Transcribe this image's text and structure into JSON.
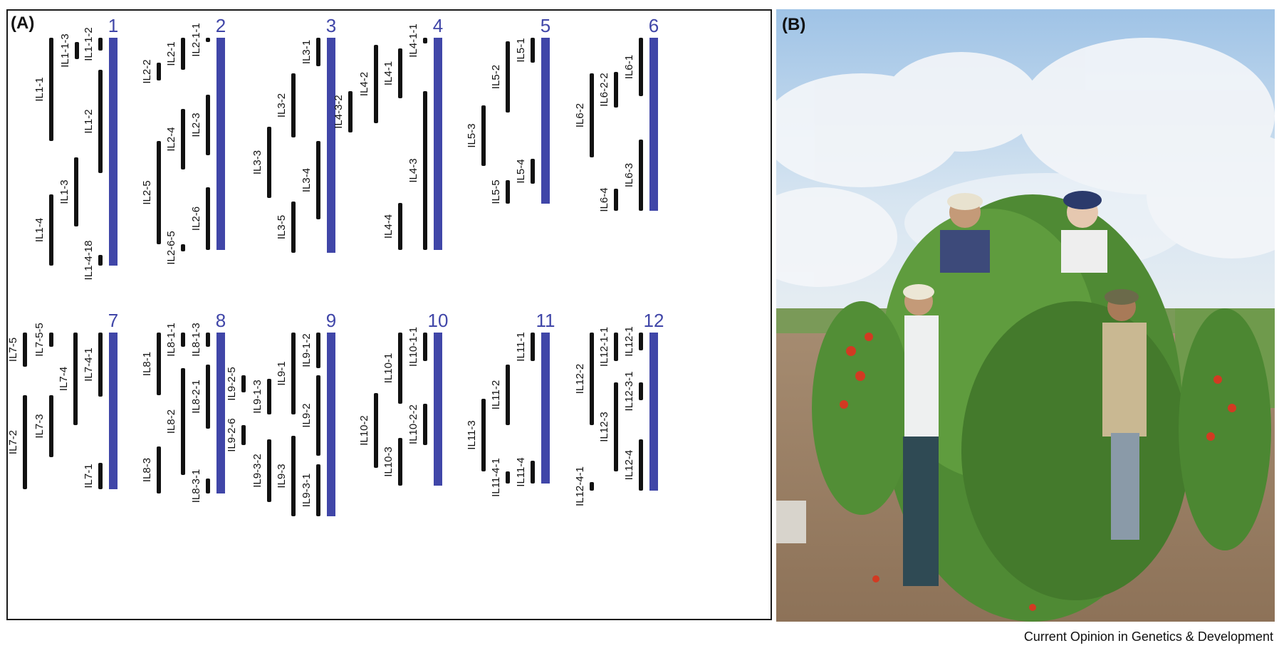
{
  "panel_a": {
    "label": "(A)",
    "colors": {
      "chromosome": "#4046a8",
      "introgression": "#111111",
      "number": "#4046a8"
    },
    "chromosomes": [
      {
        "number": "1",
        "lines": [
          {
            "label": "IL1-1-3"
          },
          {
            "label": "IL1-1-2"
          },
          {
            "label": "IL1-1"
          },
          {
            "label": "IL1-2"
          },
          {
            "label": "IL1-3"
          },
          {
            "label": "IL1-4"
          },
          {
            "label": "IL1-4-18"
          }
        ]
      },
      {
        "number": "2",
        "lines": [
          {
            "label": "IL2-1-1"
          },
          {
            "label": "IL2-1"
          },
          {
            "label": "IL2-2"
          },
          {
            "label": "IL2-3"
          },
          {
            "label": "IL2-4"
          },
          {
            "label": "IL2-5"
          },
          {
            "label": "IL2-6"
          },
          {
            "label": "IL2-6-5"
          }
        ]
      },
      {
        "number": "3",
        "lines": [
          {
            "label": "IL3-1"
          },
          {
            "label": "IL3-2"
          },
          {
            "label": "IL3-3"
          },
          {
            "label": "IL3-4"
          },
          {
            "label": "IL3-5"
          }
        ]
      },
      {
        "number": "4",
        "lines": [
          {
            "label": "IL4-1-1"
          },
          {
            "label": "IL4-1"
          },
          {
            "label": "IL4-2"
          },
          {
            "label": "IL4-3-2"
          },
          {
            "label": "IL4-3"
          },
          {
            "label": "IL4-4"
          }
        ]
      },
      {
        "number": "5",
        "lines": [
          {
            "label": "IL5-1"
          },
          {
            "label": "IL5-2"
          },
          {
            "label": "IL5-3"
          },
          {
            "label": "IL5-4"
          },
          {
            "label": "IL5-5"
          }
        ]
      },
      {
        "number": "6",
        "lines": [
          {
            "label": "IL6-1"
          },
          {
            "label": "IL6-2-2"
          },
          {
            "label": "IL6-2"
          },
          {
            "label": "IL6-3"
          },
          {
            "label": "IL6-4"
          }
        ]
      },
      {
        "number": "7",
        "lines": [
          {
            "label": "IL7-5"
          },
          {
            "label": "IL7-5-5"
          },
          {
            "label": "IL7-4-1"
          },
          {
            "label": "IL7-4"
          },
          {
            "label": "IL7-3"
          },
          {
            "label": "IL7-2"
          },
          {
            "label": "IL7-1"
          }
        ]
      },
      {
        "number": "8",
        "lines": [
          {
            "label": "IL8-1"
          },
          {
            "label": "IL8-1-1"
          },
          {
            "label": "IL8-1-3"
          },
          {
            "label": "IL8-2-1"
          },
          {
            "label": "IL8-2"
          },
          {
            "label": "IL8-3"
          },
          {
            "label": "IL8-3-1"
          }
        ]
      },
      {
        "number": "9",
        "lines": [
          {
            "label": "IL9-2-5"
          },
          {
            "label": "IL9-1-3"
          },
          {
            "label": "IL9-1"
          },
          {
            "label": "IL9-1-2"
          },
          {
            "label": "IL9-2"
          },
          {
            "label": "IL9-2-6"
          },
          {
            "label": "IL9-3-2"
          },
          {
            "label": "IL9-3"
          },
          {
            "label": "IL9-3-1"
          }
        ]
      },
      {
        "number": "10",
        "lines": [
          {
            "label": "IL10-1"
          },
          {
            "label": "IL10-1-1"
          },
          {
            "label": "IL10-2"
          },
          {
            "label": "IL10-2-2"
          },
          {
            "label": "IL10-3"
          }
        ]
      },
      {
        "number": "11",
        "lines": [
          {
            "label": "IL11-1"
          },
          {
            "label": "IL11-2"
          },
          {
            "label": "IL11-3"
          },
          {
            "label": "IL11-4"
          },
          {
            "label": "IL11-4-1"
          }
        ]
      },
      {
        "number": "12",
        "lines": [
          {
            "label": "IL12-1"
          },
          {
            "label": "IL12-1-1"
          },
          {
            "label": "IL12-2"
          },
          {
            "label": "IL12-3-1"
          },
          {
            "label": "IL12-3"
          },
          {
            "label": "IL12-4"
          },
          {
            "label": "IL12-4-1"
          }
        ]
      }
    ]
  },
  "panel_b": {
    "label": "(B)"
  },
  "credit": "Current Opinion in Genetics & Development"
}
